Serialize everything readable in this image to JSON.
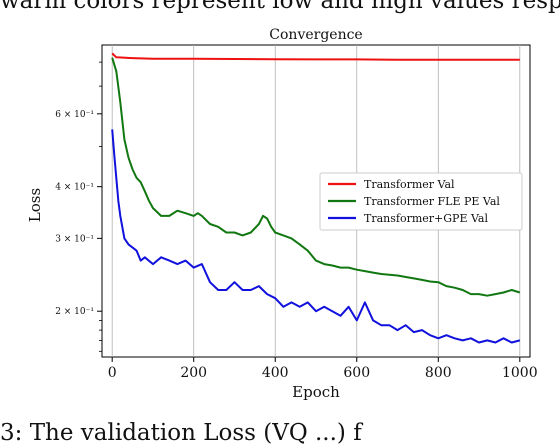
{
  "caption_top": "warm colors represent low and high values respecti",
  "caption_bottom": "3: The validation Loss (VQ ...) f",
  "chart_data": {
    "type": "line",
    "title": "Convergence",
    "xlabel": "Epoch",
    "ylabel": "Loss",
    "xlim": [
      -25,
      1025
    ],
    "ylim": [
      0.155,
      0.88
    ],
    "yscale": "log",
    "grid": "x-only",
    "legend_position": "center-right",
    "x_ticks": [
      0,
      200,
      400,
      600,
      800,
      1000
    ],
    "x_tick_labels": [
      "0",
      "200",
      "400",
      "600",
      "800",
      "1000"
    ],
    "y_ticks": [
      0.2,
      0.3,
      0.4,
      0.6
    ],
    "y_tick_labels": [
      "2 × 10⁻¹",
      "3 × 10⁻¹",
      "4 × 10⁻¹",
      "6 × 10⁻¹"
    ],
    "series": [
      {
        "name": "Transformer Val",
        "color": "#ee1111",
        "x": [
          0,
          10,
          50,
          100,
          200,
          300,
          400,
          500,
          600,
          700,
          800,
          900,
          1000
        ],
        "y": [
          0.84,
          0.822,
          0.818,
          0.815,
          0.815,
          0.814,
          0.813,
          0.812,
          0.812,
          0.811,
          0.811,
          0.811,
          0.811
        ]
      },
      {
        "name": "Transformer FLE PE Val",
        "color": "#117711",
        "x": [
          0,
          10,
          20,
          30,
          40,
          50,
          60,
          70,
          80,
          90,
          100,
          120,
          140,
          160,
          180,
          200,
          210,
          220,
          240,
          260,
          280,
          300,
          320,
          340,
          360,
          370,
          380,
          390,
          400,
          420,
          440,
          460,
          480,
          500,
          520,
          540,
          560,
          580,
          600,
          620,
          640,
          660,
          680,
          700,
          720,
          740,
          760,
          780,
          800,
          820,
          840,
          860,
          880,
          900,
          920,
          940,
          960,
          980,
          1000
        ],
        "y": [
          0.82,
          0.76,
          0.64,
          0.52,
          0.47,
          0.44,
          0.42,
          0.41,
          0.39,
          0.37,
          0.355,
          0.34,
          0.34,
          0.35,
          0.345,
          0.34,
          0.345,
          0.34,
          0.325,
          0.32,
          0.31,
          0.31,
          0.305,
          0.31,
          0.325,
          0.34,
          0.335,
          0.32,
          0.31,
          0.305,
          0.3,
          0.29,
          0.28,
          0.265,
          0.26,
          0.258,
          0.255,
          0.255,
          0.252,
          0.25,
          0.248,
          0.246,
          0.245,
          0.244,
          0.242,
          0.24,
          0.238,
          0.236,
          0.235,
          0.23,
          0.228,
          0.225,
          0.22,
          0.22,
          0.218,
          0.22,
          0.222,
          0.225,
          0.222
        ]
      },
      {
        "name": "Transformer+GPE Val",
        "color": "#1111dd",
        "x": [
          0,
          5,
          10,
          15,
          20,
          30,
          40,
          50,
          60,
          70,
          80,
          100,
          120,
          140,
          160,
          180,
          200,
          220,
          240,
          260,
          280,
          300,
          320,
          340,
          360,
          380,
          400,
          420,
          440,
          460,
          480,
          500,
          520,
          540,
          560,
          580,
          600,
          620,
          640,
          660,
          680,
          700,
          720,
          740,
          760,
          780,
          800,
          820,
          840,
          860,
          880,
          900,
          920,
          940,
          960,
          980,
          1000
        ],
        "y": [
          0.55,
          0.48,
          0.42,
          0.37,
          0.34,
          0.3,
          0.29,
          0.285,
          0.28,
          0.265,
          0.27,
          0.26,
          0.27,
          0.265,
          0.26,
          0.265,
          0.255,
          0.26,
          0.235,
          0.225,
          0.225,
          0.235,
          0.225,
          0.225,
          0.23,
          0.22,
          0.215,
          0.205,
          0.21,
          0.205,
          0.21,
          0.2,
          0.205,
          0.2,
          0.195,
          0.205,
          0.19,
          0.21,
          0.19,
          0.185,
          0.185,
          0.18,
          0.185,
          0.178,
          0.18,
          0.175,
          0.172,
          0.175,
          0.172,
          0.17,
          0.172,
          0.168,
          0.17,
          0.168,
          0.172,
          0.168,
          0.17
        ]
      }
    ]
  }
}
